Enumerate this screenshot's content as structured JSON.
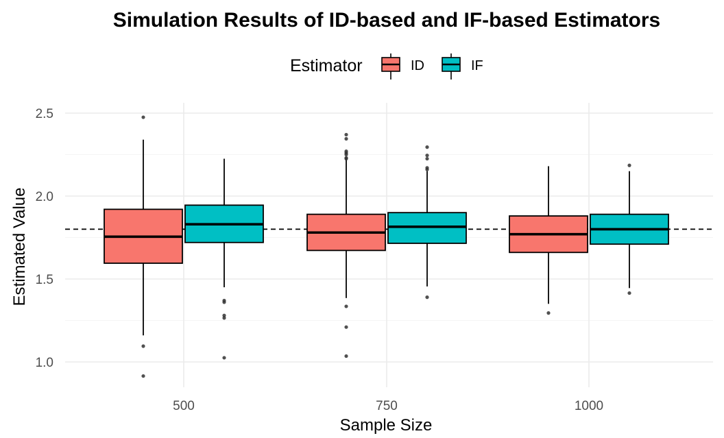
{
  "chart_data": {
    "type": "boxplot",
    "title": "Simulation Results of ID-based and IF-based Estimators",
    "xlabel": "Sample Size",
    "ylabel": "Estimated Value",
    "categories": [
      "500",
      "750",
      "1000"
    ],
    "ylim": [
      0.85,
      2.55
    ],
    "yticks": [
      1.0,
      1.5,
      2.0,
      2.5
    ],
    "ytick_labels": [
      "1.0",
      "1.5",
      "2.0",
      "2.5"
    ],
    "reference_line": 1.8,
    "legend": {
      "title": "Estimator",
      "position": "top"
    },
    "grid": true,
    "series": [
      {
        "name": "ID",
        "color": "#F8766D",
        "boxes": [
          {
            "whisker_low": 1.16,
            "q1": 1.595,
            "median": 1.755,
            "q3": 1.92,
            "whisker_high": 2.34,
            "outliers": [
              2.475,
              1.095,
              0.915
            ]
          },
          {
            "whisker_low": 1.385,
            "q1": 1.672,
            "median": 1.78,
            "q3": 1.89,
            "whisker_high": 2.22,
            "outliers": [
              2.37,
              2.345,
              2.27,
              2.26,
              2.25,
              2.23,
              2.225,
              1.335,
              1.21,
              1.035
            ]
          },
          {
            "whisker_low": 1.35,
            "q1": 1.66,
            "median": 1.77,
            "q3": 1.88,
            "whisker_high": 2.18,
            "outliers": [
              1.295
            ]
          }
        ]
      },
      {
        "name": "IF",
        "color": "#00BFC4",
        "boxes": [
          {
            "whisker_low": 1.45,
            "q1": 1.72,
            "median": 1.83,
            "q3": 1.945,
            "whisker_high": 2.225,
            "outliers": [
              1.37,
              1.36,
              1.28,
              1.265,
              1.025
            ]
          },
          {
            "whisker_low": 1.455,
            "q1": 1.715,
            "median": 1.815,
            "q3": 1.9,
            "whisker_high": 2.15,
            "outliers": [
              2.295,
              2.245,
              2.225,
              2.17,
              2.16,
              1.39
            ]
          },
          {
            "whisker_low": 1.445,
            "q1": 1.71,
            "median": 1.8,
            "q3": 1.89,
            "whisker_high": 2.15,
            "outliers": [
              2.185,
              1.415
            ]
          }
        ]
      }
    ]
  }
}
